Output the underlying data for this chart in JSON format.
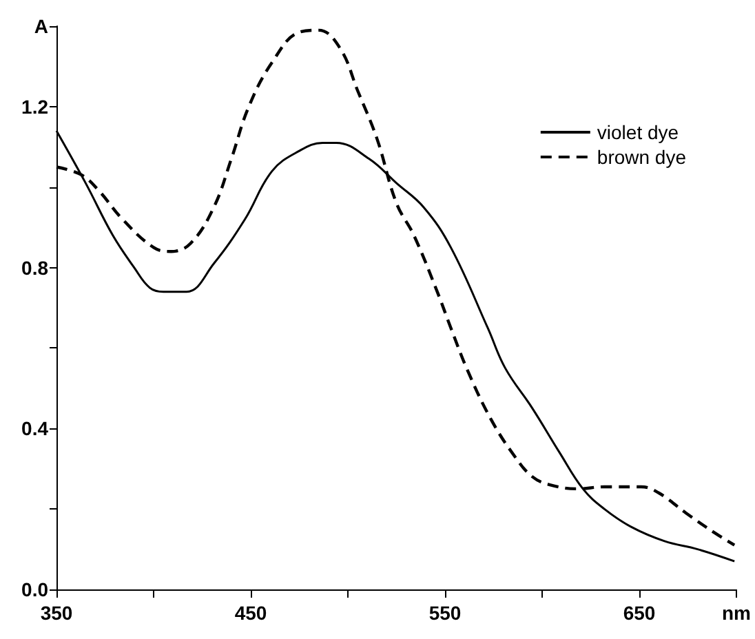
{
  "chart_data": {
    "type": "line",
    "xlim": [
      350,
      700
    ],
    "ylim": [
      0,
      1.4
    ],
    "xticks": [
      350,
      {
        "value": 400,
        "label": null
      },
      450,
      {
        "value": 500,
        "label": null
      },
      550,
      {
        "value": 600,
        "label": null
      },
      650,
      {
        "value": 700,
        "label": "nm"
      }
    ],
    "yticks": [
      "0.0",
      {
        "value": 0.2,
        "label": null
      },
      0.4,
      {
        "value": 0.6,
        "label": null
      },
      0.8,
      {
        "value": 1.0,
        "label": null
      },
      1.2,
      {
        "value": 1.4,
        "label": "A"
      }
    ],
    "grid": false,
    "legend": "top right",
    "marker": "none",
    "series": [
      {
        "name": "violet dye",
        "color": "#000000",
        "line_style": "solid",
        "x": [
          350,
          365,
          379,
          390,
          398,
          405,
          417,
          431,
          447,
          461,
          475,
          487,
          494,
          511,
          525,
          539,
          553,
          572,
          581,
          595,
          609,
          621,
          632,
          646,
          663,
          680,
          699
        ],
        "values": [
          1.14,
          1.01,
          0.88,
          0.8,
          0.75,
          0.74,
          0.74,
          0.81,
          0.92,
          1.04,
          1.09,
          1.11,
          1.11,
          1.07,
          1.01,
          0.95,
          0.85,
          0.65,
          0.55,
          0.45,
          0.34,
          0.25,
          0.2,
          0.155,
          0.12,
          0.1,
          0.07
        ]
      },
      {
        "name": "brown dye",
        "color": "#000000",
        "line_style": "dashed",
        "x": [
          350,
          363,
          372,
          384,
          400,
          409,
          419,
          431,
          440,
          449,
          461,
          475,
          485,
          496,
          505,
          515,
          525,
          534,
          546,
          553,
          562,
          574,
          586,
          595,
          604,
          618,
          632,
          651,
          660,
          674,
          689,
          699
        ],
        "values": [
          1.05,
          1.03,
          0.99,
          0.92,
          0.85,
          0.84,
          0.86,
          0.95,
          1.07,
          1.2,
          1.31,
          1.385,
          1.39,
          1.345,
          1.24,
          1.12,
          0.96,
          0.88,
          0.74,
          0.65,
          0.54,
          0.42,
          0.33,
          0.28,
          0.26,
          0.25,
          0.255,
          0.255,
          0.24,
          0.19,
          0.14,
          0.11
        ]
      }
    ]
  }
}
